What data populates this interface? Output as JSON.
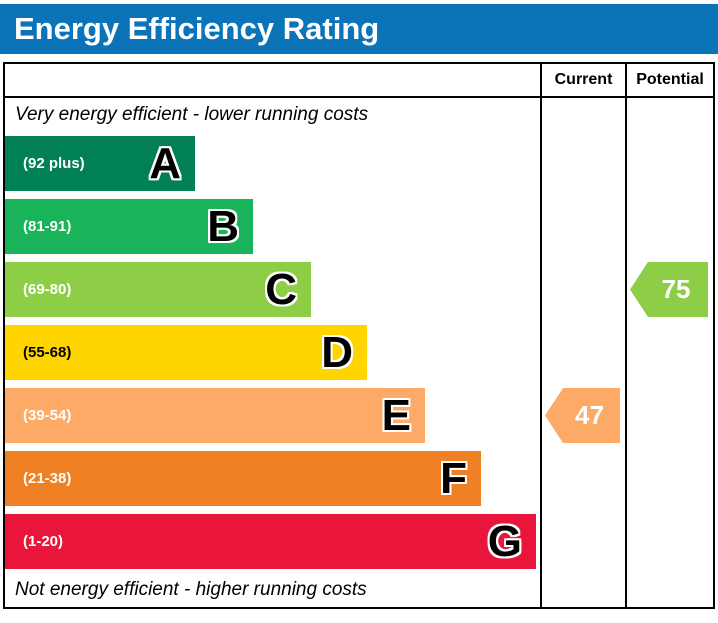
{
  "title": "Energy Efficiency Rating",
  "header": {
    "current": "Current",
    "potential": "Potential"
  },
  "notes": {
    "top": "Very energy efficient - lower running costs",
    "bottom": "Not energy efficient - higher running costs"
  },
  "bands": [
    {
      "letter": "A",
      "range": "(92 plus)",
      "color": "#008054",
      "label_color": "#ffffff"
    },
    {
      "letter": "B",
      "range": "(81-91)",
      "color": "#19b459",
      "label_color": "#ffffff"
    },
    {
      "letter": "C",
      "range": "(69-80)",
      "color": "#8dce46",
      "label_color": "#ffffff"
    },
    {
      "letter": "D",
      "range": "(55-68)",
      "color": "#ffd500",
      "label_color": "#000000"
    },
    {
      "letter": "E",
      "range": "(39-54)",
      "color": "#fcaa65",
      "label_color": "#ffffff"
    },
    {
      "letter": "F",
      "range": "(21-38)",
      "color": "#ef8023",
      "label_color": "#ffffff"
    },
    {
      "letter": "G",
      "range": "(1-20)",
      "color": "#e9153b",
      "label_color": "#ffffff"
    }
  ],
  "ratings": {
    "current": {
      "value": "47",
      "band": "E",
      "color": "#fcaa65"
    },
    "potential": {
      "value": "75",
      "band": "C",
      "color": "#8dce46"
    }
  },
  "colors": {
    "title_bg": "#0b74b8",
    "border": "#000000"
  },
  "chart_data": {
    "type": "bar",
    "orientation": "horizontal",
    "title": "Energy Efficiency Rating",
    "categories": [
      "A",
      "B",
      "C",
      "D",
      "E",
      "F",
      "G"
    ],
    "band_ranges": [
      "92 plus",
      "81-91",
      "69-80",
      "55-68",
      "39-54",
      "21-38",
      "1-20"
    ],
    "band_colors": [
      "#008054",
      "#19b459",
      "#8dce46",
      "#ffd500",
      "#fcaa65",
      "#ef8023",
      "#e9153b"
    ],
    "bar_lengths_relative": [
      0.36,
      0.47,
      0.58,
      0.68,
      0.79,
      0.9,
      1.0
    ],
    "annotations": [
      {
        "label": "Current",
        "value": 47,
        "band": "E",
        "color": "#fcaa65"
      },
      {
        "label": "Potential",
        "value": 75,
        "band": "C",
        "color": "#8dce46"
      }
    ],
    "top_note": "Very energy efficient - lower running costs",
    "bottom_note": "Not energy efficient - higher running costs",
    "legend": "off",
    "grid": "off"
  }
}
